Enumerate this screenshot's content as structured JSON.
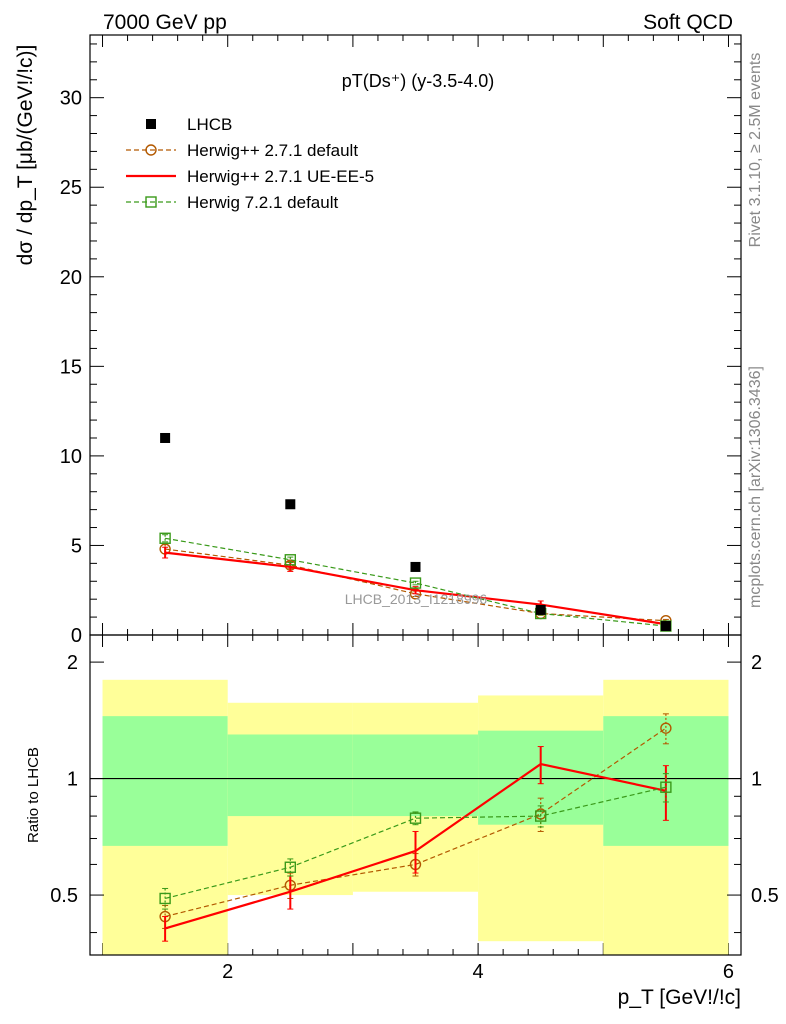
{
  "header": {
    "left": "7000 GeV pp",
    "right": "Soft QCD"
  },
  "side_labels": {
    "rivet": "Rivet 3.1.10, ≥ 2.5M events",
    "mcplots": "mcplots.cern.ch [arXiv:1306.3436]"
  },
  "colors": {
    "data": "#000000",
    "herwigpp_default": "#b35900",
    "herwigpp_ueee5": "#ff0000",
    "herwig7_default": "#3a9a1a",
    "band_inner": "#99ff99",
    "band_outer": "#ffff99"
  },
  "chart_data": [
    {
      "type": "scatter",
      "title": "pT(Ds⁺) (y-3.5-4.0)",
      "ylabel": "dσ / dp_T [μb/(GeV!/!c)]",
      "watermark": "LHCB_2013_I1218996",
      "xlim": [
        0.9,
        6.1
      ],
      "ylim": [
        0,
        33.5
      ],
      "y_ticks": [
        0,
        5,
        10,
        15,
        20,
        25,
        30
      ],
      "x": [
        1.5,
        2.5,
        3.5,
        4.5,
        5.5
      ],
      "x_bins": [
        [
          1,
          2
        ],
        [
          2,
          3
        ],
        [
          3,
          4
        ],
        [
          4,
          5
        ],
        [
          5,
          6
        ]
      ],
      "legend_position": "top-left",
      "series": [
        {
          "name": "LHCB",
          "style": "marker-square",
          "values": [
            11.0,
            7.3,
            3.8,
            1.4,
            0.5
          ]
        },
        {
          "name": "Herwig++ 2.7.1 default",
          "style": "dashed-circle",
          "values": [
            4.8,
            3.9,
            2.3,
            1.2,
            0.8
          ],
          "errors": [
            0.25,
            0.2,
            0.15,
            0.1,
            0.07
          ]
        },
        {
          "name": "Herwig++ 2.7.1 UE-EE-5",
          "style": "solid",
          "values": [
            4.6,
            3.8,
            2.5,
            1.7,
            0.6
          ],
          "errors": [
            0.3,
            0.25,
            0.2,
            0.2,
            0.1
          ]
        },
        {
          "name": "Herwig 7.2.1 default",
          "style": "dashed-square",
          "values": [
            5.4,
            4.2,
            2.9,
            1.2,
            0.5
          ],
          "errors": [
            0.2,
            0.15,
            0.1,
            0.08,
            0.05
          ]
        }
      ]
    },
    {
      "type": "line",
      "ylabel": "Ratio to LHCB",
      "xlabel": "p_T [GeV!/!c]",
      "xlim": [
        0.9,
        6.1
      ],
      "ylim": [
        0.35,
        2.35
      ],
      "log_y": true,
      "x_ticks": [
        2,
        4,
        6
      ],
      "y_tick_labels": [
        "0.5",
        "1",
        "2"
      ],
      "x": [
        1.5,
        2.5,
        3.5,
        4.5,
        5.5
      ],
      "bands": {
        "edges": [
          1,
          2,
          3,
          4,
          5,
          6
        ],
        "inner": [
          [
            0.67,
            1.45
          ],
          [
            0.8,
            1.3
          ],
          [
            0.8,
            1.3
          ],
          [
            0.76,
            1.33
          ],
          [
            0.67,
            1.45
          ]
        ],
        "outer": [
          [
            0.35,
            1.8
          ],
          [
            0.5,
            1.57
          ],
          [
            0.51,
            1.57
          ],
          [
            0.38,
            1.64
          ],
          [
            0.35,
            1.8
          ]
        ]
      },
      "series": [
        {
          "name": "Herwig++ 2.7.1 default",
          "values": [
            0.44,
            0.53,
            0.6,
            0.81,
            1.35
          ],
          "errors": [
            0.03,
            0.04,
            0.04,
            0.08,
            0.12
          ]
        },
        {
          "name": "Herwig++ 2.7.1 UE-EE-5",
          "values": [
            0.41,
            0.51,
            0.65,
            1.09,
            0.93
          ],
          "errors": [
            0.03,
            0.05,
            0.08,
            0.12,
            0.15
          ]
        },
        {
          "name": "Herwig 7.2.1 default",
          "values": [
            0.49,
            0.59,
            0.79,
            0.8,
            0.95
          ],
          "errors": [
            0.03,
            0.03,
            0.03,
            0.05,
            0.08
          ]
        }
      ]
    }
  ]
}
